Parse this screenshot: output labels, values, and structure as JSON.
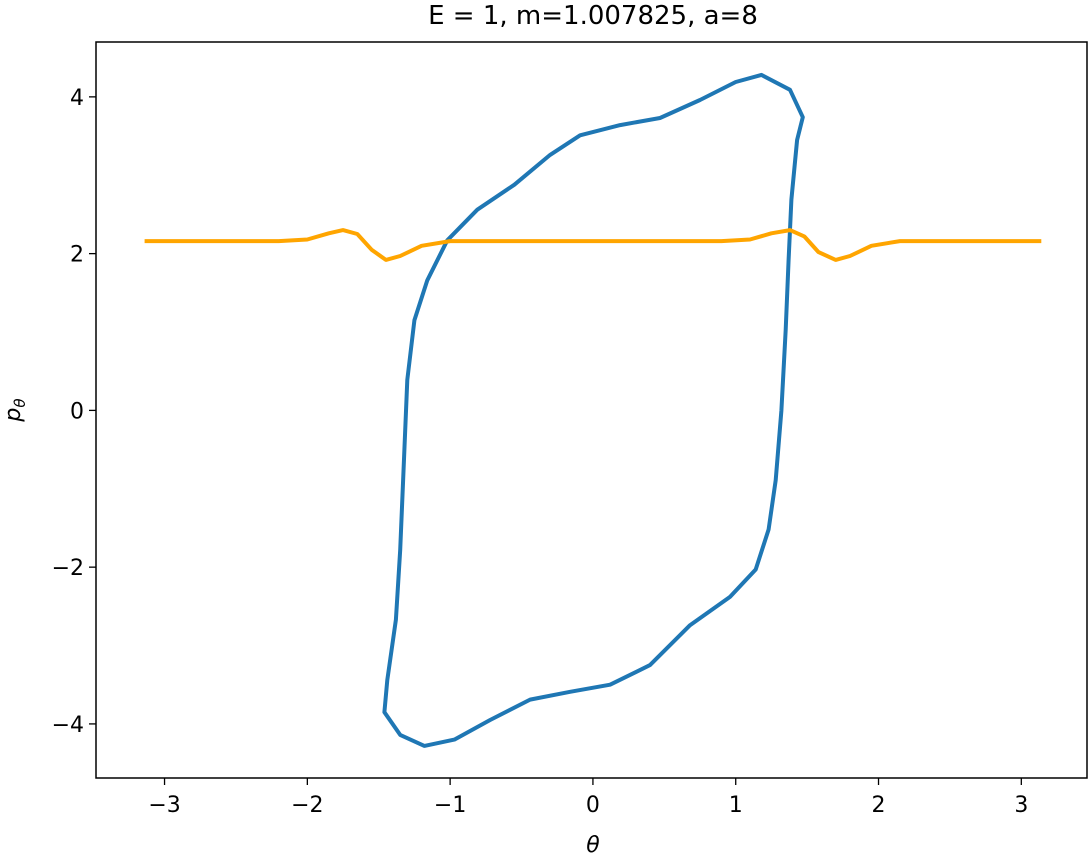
{
  "chart_data": {
    "type": "line",
    "title": "E = 1, m=1.007825, a=8",
    "xlabel": "θ",
    "ylabel": {
      "text": "p",
      "subscript": "θ"
    },
    "xlim": [
      -3.48,
      3.46
    ],
    "ylim": [
      -4.69,
      4.7
    ],
    "xticks": [
      {
        "value": -3,
        "label": "−3"
      },
      {
        "value": -2,
        "label": "−2"
      },
      {
        "value": -1,
        "label": "−1"
      },
      0,
      1,
      2,
      3
    ],
    "yticks": [
      {
        "value": -4,
        "label": "−4"
      },
      {
        "value": -2,
        "label": "−2"
      },
      0,
      2,
      4
    ],
    "grid": false,
    "series": [
      {
        "color": "#1f77b4",
        "closed": true,
        "x": [
          1.47,
          1.43,
          1.39,
          1.37,
          1.35,
          1.32,
          1.28,
          1.23,
          1.14,
          0.96,
          0.68,
          0.4,
          0.12,
          -0.16,
          -0.44,
          -0.72,
          -0.97,
          -1.18,
          -1.35,
          -1.46,
          -1.44,
          -1.38,
          -1.35,
          -1.32,
          -1.3,
          -1.25,
          -1.16,
          -1.02,
          -0.81,
          -0.55,
          -0.3,
          -0.09,
          0.19,
          0.47,
          0.75,
          1.0,
          1.18,
          1.38
        ],
        "values": [
          3.74,
          3.45,
          2.69,
          1.92,
          1.03,
          0,
          -0.89,
          -1.52,
          -2.03,
          -2.38,
          -2.74,
          -3.25,
          -3.5,
          -3.59,
          -3.69,
          -3.95,
          -4.2,
          -4.28,
          -4.14,
          -3.85,
          -3.44,
          -2.67,
          -1.78,
          -0.5,
          0.39,
          1.15,
          1.66,
          2.17,
          2.56,
          2.88,
          3.26,
          3.51,
          3.64,
          3.73,
          3.96,
          4.19,
          4.28,
          4.09
        ]
      },
      {
        "color": "#ffa500",
        "closed": false,
        "x": [
          -3.14,
          -2.2,
          -2.0,
          -1.85,
          -1.75,
          -1.65,
          -1.55,
          -1.45,
          -1.35,
          -1.2,
          -1.0,
          0.9,
          1.1,
          1.25,
          1.38,
          1.48,
          1.58,
          1.7,
          1.8,
          1.95,
          2.15,
          3.14
        ],
        "values": [
          2.16,
          2.16,
          2.18,
          2.26,
          2.3,
          2.25,
          2.05,
          1.92,
          1.97,
          2.1,
          2.16,
          2.16,
          2.18,
          2.26,
          2.3,
          2.22,
          2.02,
          1.92,
          1.97,
          2.1,
          2.16,
          2.16
        ]
      }
    ]
  }
}
